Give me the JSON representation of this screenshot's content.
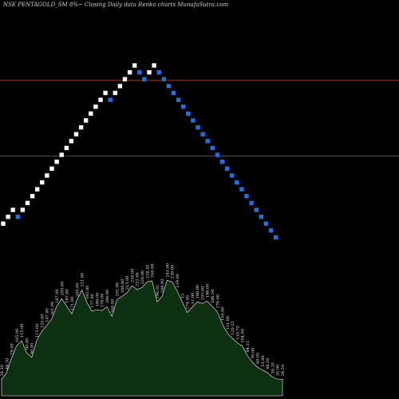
{
  "chart_data": {
    "type": "renko",
    "title": "NSE PENTAGOLD_SM 8%~  Closing Daily data  Renko  charts MunafaSutra.com",
    "grid": false,
    "colors": {
      "background": "#000000",
      "up_brick": "#ffffff",
      "down_brick": "#1f6fe8",
      "brick_border": "#000000",
      "reference_line": "#8a3a12",
      "volume_fill": "#0c3010",
      "volume_edge": "#ffffff",
      "label": "#e8e8e8",
      "title": "#d0d0d0"
    },
    "reference_lines": [
      {
        "name": "upper",
        "y_level": 47
      },
      {
        "name": "lower",
        "y_level": 58
      }
    ],
    "bricks": [
      {
        "dir": "up",
        "level": 36
      },
      {
        "dir": "up",
        "level": 37
      },
      {
        "dir": "up",
        "level": 38
      },
      {
        "dir": "down",
        "level": 37
      },
      {
        "dir": "up",
        "level": 38
      },
      {
        "dir": "up",
        "level": 39
      },
      {
        "dir": "up",
        "level": 40
      },
      {
        "dir": "up",
        "level": 41
      },
      {
        "dir": "up",
        "level": 42
      },
      {
        "dir": "up",
        "level": 43
      },
      {
        "dir": "up",
        "level": 44
      },
      {
        "dir": "up",
        "level": 45
      },
      {
        "dir": "up",
        "level": 46
      },
      {
        "dir": "up",
        "level": 47
      },
      {
        "dir": "up",
        "level": 48
      },
      {
        "dir": "up",
        "level": 49
      },
      {
        "dir": "up",
        "level": 50
      },
      {
        "dir": "up",
        "level": 51
      },
      {
        "dir": "up",
        "level": 52
      },
      {
        "dir": "up",
        "level": 53
      },
      {
        "dir": "up",
        "level": 54
      },
      {
        "dir": "up",
        "level": 55
      },
      {
        "dir": "down",
        "level": 54
      },
      {
        "dir": "up",
        "level": 55
      },
      {
        "dir": "up",
        "level": 56
      },
      {
        "dir": "up",
        "level": 57
      },
      {
        "dir": "up",
        "level": 58
      },
      {
        "dir": "up",
        "level": 59
      },
      {
        "dir": "down",
        "level": 58
      },
      {
        "dir": "down",
        "level": 57
      },
      {
        "dir": "up",
        "level": 58
      },
      {
        "dir": "up",
        "level": 59
      },
      {
        "dir": "down",
        "level": 58
      },
      {
        "dir": "down",
        "level": 57
      },
      {
        "dir": "down",
        "level": 56
      },
      {
        "dir": "down",
        "level": 55
      },
      {
        "dir": "down",
        "level": 54
      },
      {
        "dir": "down",
        "level": 53
      },
      {
        "dir": "down",
        "level": 52
      },
      {
        "dir": "down",
        "level": 51
      },
      {
        "dir": "down",
        "level": 50
      },
      {
        "dir": "down",
        "level": 49
      },
      {
        "dir": "down",
        "level": 48
      },
      {
        "dir": "down",
        "level": 47
      },
      {
        "dir": "down",
        "level": 46
      },
      {
        "dir": "down",
        "level": 45
      },
      {
        "dir": "down",
        "level": 44
      },
      {
        "dir": "down",
        "level": 43
      },
      {
        "dir": "down",
        "level": 42
      },
      {
        "dir": "down",
        "level": 41
      },
      {
        "dir": "down",
        "level": 40
      },
      {
        "dir": "down",
        "level": 39
      },
      {
        "dir": "down",
        "level": 38
      },
      {
        "dir": "down",
        "level": 37
      },
      {
        "dir": "down",
        "level": 36
      },
      {
        "dir": "down",
        "level": 35
      },
      {
        "dir": "down",
        "level": 34
      }
    ],
    "volume_labels": [
      "34.30",
      "48.20",
      "79.00",
      "105.00",
      "115.00",
      "90.00",
      "80.00",
      "115.00",
      "135.00",
      "147.00",
      "161.00",
      "187.00",
      "203.00",
      "187.00",
      "171.00",
      "200.00",
      "221.00",
      "195.00",
      "177.00",
      "180.00",
      "178.00",
      "186.00",
      "166.00",
      "201.00",
      "208.00",
      "215.00",
      "230.00",
      "222.00",
      "226.00",
      "238.45",
      "240.00",
      "196.05",
      "208.00",
      "241.00",
      "238.00",
      "219.00",
      "15",
      "174.00",
      "11.00",
      "196.00",
      "193.00",
      "198.00",
      "186.50",
      "176.00",
      "150.00",
      "131.00",
      "120.25",
      "110.75",
      "104.00",
      "84.15",
      "70.00",
      "60.05",
      "53.90",
      "48.50",
      "39.20",
      "35.00",
      "34.50"
    ],
    "volume_values": [
      34.3,
      48.2,
      79,
      105,
      115,
      90,
      80,
      115,
      135,
      147,
      161,
      187,
      203,
      187,
      171,
      200,
      221,
      195,
      177,
      180,
      178,
      186,
      166,
      201,
      208,
      215,
      230,
      222,
      226,
      238.45,
      240,
      196.05,
      208,
      241,
      238,
      219,
      15,
      174,
      11,
      196,
      193,
      198,
      186.5,
      176,
      150,
      131,
      120.25,
      110.75,
      104,
      84.15,
      70,
      60.05,
      53.9,
      48.5,
      39.2,
      35,
      34.5
    ]
  }
}
